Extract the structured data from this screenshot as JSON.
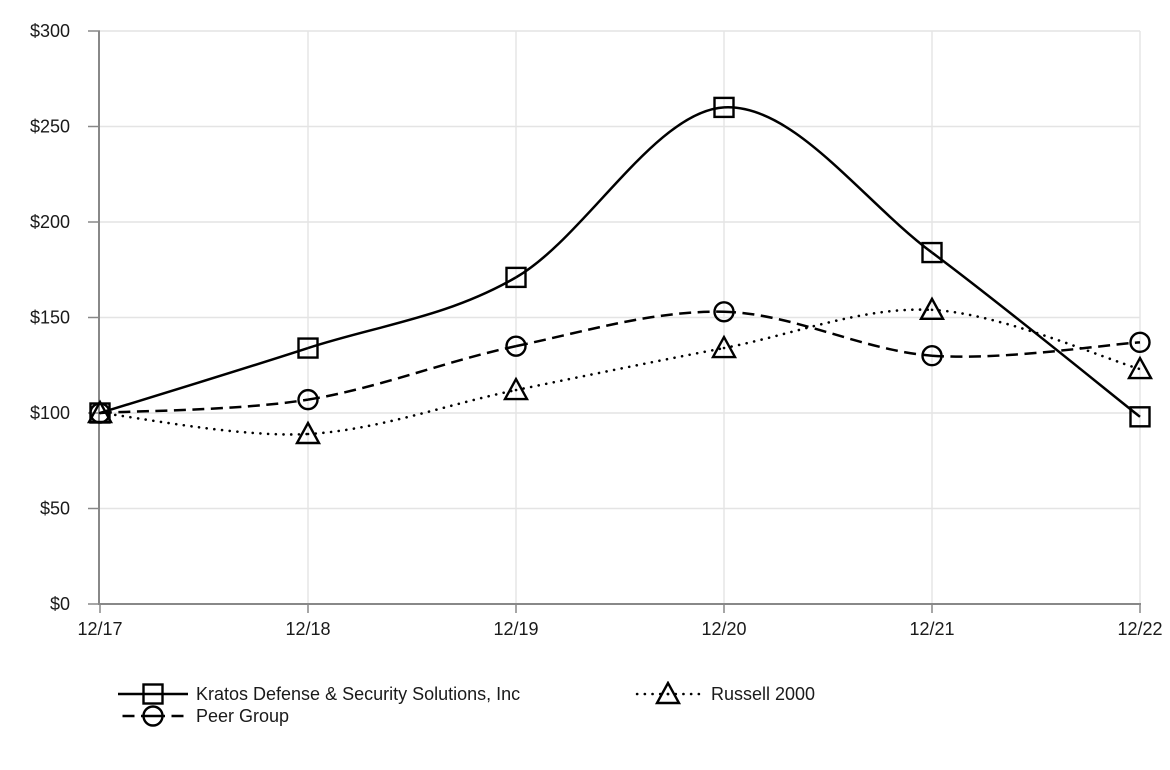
{
  "chart_data": {
    "type": "line",
    "title": "",
    "categories": [
      "12/17",
      "12/18",
      "12/19",
      "12/20",
      "12/21",
      "12/22"
    ],
    "series": [
      {
        "name": "Kratos Defense & Security Solutions, Inc",
        "marker": "square",
        "line_style": "solid",
        "values": [
          100,
          134,
          171,
          260,
          184,
          98
        ]
      },
      {
        "name": "Peer Group",
        "marker": "circle",
        "line_style": "dashed",
        "values": [
          100,
          107,
          135,
          153,
          130,
          137
        ]
      },
      {
        "name": "Russell 2000",
        "marker": "triangle",
        "line_style": "dotted",
        "values": [
          100,
          89,
          112,
          134,
          154,
          123
        ]
      }
    ],
    "ylim": [
      0,
      300
    ],
    "ytick_step": 50,
    "ytick_labels": [
      "$0",
      "$50",
      "$100",
      "$150",
      "$200",
      "$250",
      "$300"
    ],
    "grid": true,
    "legend_position": "bottom",
    "colors": {
      "line": "#000000",
      "axis": "#888888",
      "gridline": "#e4e4e4",
      "text": "#1a1a1a",
      "background": "#ffffff"
    }
  }
}
